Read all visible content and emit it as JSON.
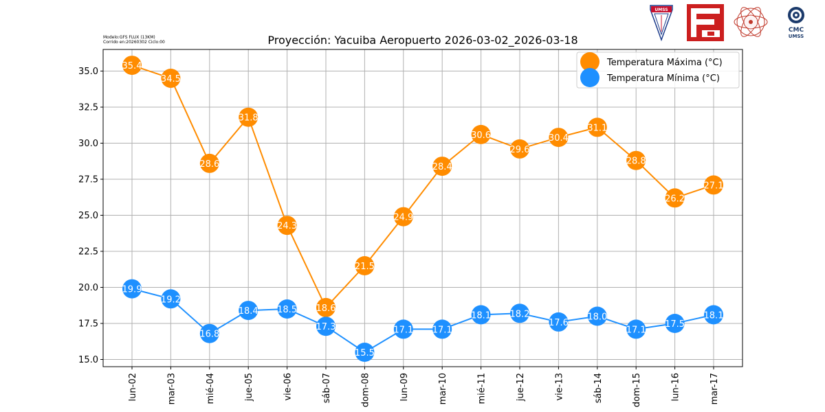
{
  "meta": {
    "model_line": "Modelo:GFS FLUX (13KM)",
    "run_line": "Corrido en:20260302 Ciclo:00"
  },
  "logos": {
    "umss_text": "UMSS",
    "cmc_text": "CMC",
    "cmc_sub": "UMSS"
  },
  "chart_data": {
    "type": "line",
    "title": "Proyección: Yacuiba Aeropuerto 2026-03-02_2026-03-18",
    "xlabel": "",
    "ylabel": "",
    "categories": [
      "lun-02",
      "mar-03",
      "mié-04",
      "jue-05",
      "vie-06",
      "sáb-07",
      "dom-08",
      "lun-09",
      "mar-10",
      "mié-11",
      "jue-12",
      "vie-13",
      "sáb-14",
      "dom-15",
      "lun-16",
      "mar-17"
    ],
    "ylim": [
      14.5,
      36.5
    ],
    "yticks": [
      15.0,
      17.5,
      20.0,
      22.5,
      25.0,
      27.5,
      30.0,
      32.5,
      35.0
    ],
    "ytick_labels": [
      "15.0",
      "17.5",
      "20.0",
      "22.5",
      "25.0",
      "27.5",
      "30.0",
      "32.5",
      "35.0"
    ],
    "grid": true,
    "legend_position": "top-right",
    "series": [
      {
        "name": "Temperatura Máxima  (°C)",
        "color": "#ff8c00",
        "values": [
          35.4,
          34.5,
          28.6,
          31.8,
          24.3,
          18.6,
          21.5,
          24.9,
          28.4,
          30.6,
          29.6,
          30.4,
          31.1,
          28.8,
          26.2,
          27.1
        ],
        "labels": [
          "35.4",
          "34.5",
          "28.6",
          "31.8",
          "24.3",
          "18.6",
          "21.5",
          "24.9",
          "28.4",
          "30.6",
          "29.6",
          "30.4",
          "31.1",
          "28.8",
          "26.2",
          "27.1"
        ]
      },
      {
        "name": "Temperatura Mínima  (°C)",
        "color": "#1e90ff",
        "values": [
          19.9,
          19.2,
          16.8,
          18.4,
          18.5,
          17.3,
          15.5,
          17.1,
          17.1,
          18.1,
          18.2,
          17.6,
          18.0,
          17.1,
          17.5,
          18.1
        ],
        "labels": [
          "19.9",
          "19.2",
          "16.8",
          "18.4",
          "18.5",
          "17.3",
          "15.5",
          "17.1",
          "17.1",
          "18.1",
          "18.2",
          "17.6",
          "18.0",
          "17.1",
          "17.5",
          "18.1"
        ]
      }
    ]
  }
}
